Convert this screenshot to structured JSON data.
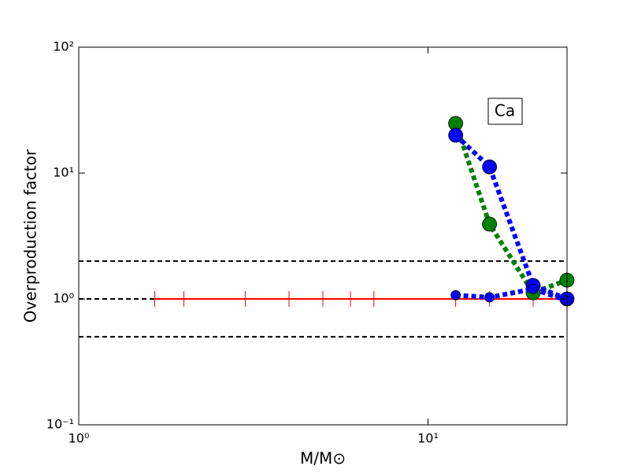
{
  "chart_data": {
    "type": "line",
    "xlabel": "M/M⊙",
    "ylabel": "Overproduction factor",
    "annotation": "Ca",
    "xscale": "log",
    "yscale": "log",
    "xlim": [
      1,
      25
    ],
    "ylim": [
      0.1,
      100
    ],
    "xticks": [
      {
        "value": 1,
        "label": "10⁰"
      },
      {
        "value": 10,
        "label": "10¹"
      }
    ],
    "yticks": [
      {
        "value": 0.1,
        "label": "10⁻¹"
      },
      {
        "value": 1,
        "label": "10⁰"
      },
      {
        "value": 10,
        "label": "10¹"
      },
      {
        "value": 100,
        "label": "10²"
      }
    ],
    "hlines": [
      {
        "value": 2,
        "color": "#000000"
      },
      {
        "value": 1,
        "color": "#000000"
      },
      {
        "value": 0.5,
        "color": "#000000"
      }
    ],
    "series": [
      {
        "color": "#ff0000",
        "style": "ref",
        "x": [
          1.65,
          2,
          3,
          4,
          5,
          6,
          7,
          12,
          15,
          20,
          25
        ],
        "values": [
          1,
          1,
          1,
          1,
          1,
          1,
          1,
          1,
          1,
          1,
          1
        ]
      },
      {
        "color": "#008000",
        "style": "dotted",
        "marker_size": 9,
        "x": [
          12,
          15,
          20,
          25
        ],
        "values": [
          24.8,
          3.93,
          1.12,
          1.41
        ]
      },
      {
        "color": "#0000ff",
        "style": "dotted",
        "marker_size": 9,
        "x": [
          12,
          15,
          20,
          25
        ],
        "values": [
          20,
          11.2,
          1.28,
          1.0
        ]
      },
      {
        "color": "#0000ff",
        "style": "dotted",
        "marker_size": 6,
        "x": [
          12,
          15,
          20,
          25
        ],
        "values": [
          1.07,
          1.03,
          1.2,
          0.97
        ]
      }
    ]
  }
}
